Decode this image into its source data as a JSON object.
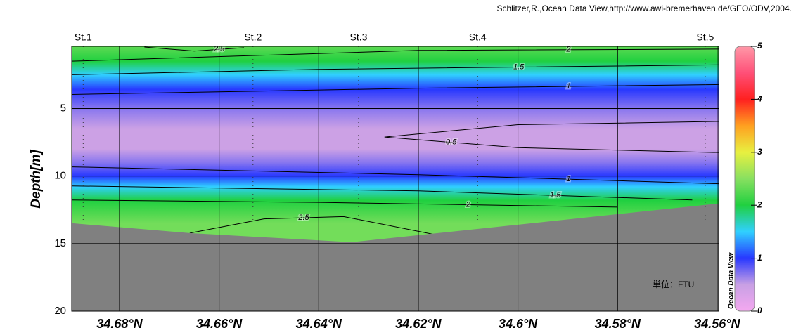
{
  "chart_data": {
    "type": "section",
    "credit": "Schlitzer,R.,Ocean Data View,http://www.awi-bremerhaven.de/GEO/ODV,2004.",
    "ylabel": "Depth[m]",
    "unit_note": "単位：FTU",
    "colorbar_label": "Ocean Data View",
    "xlim": [
      34.6896,
      34.5597
    ],
    "xticks": [
      {
        "value": 34.68,
        "label": "34.68°N"
      },
      {
        "value": 34.66,
        "label": "34.66°N"
      },
      {
        "value": 34.64,
        "label": "34.64°N"
      },
      {
        "value": 34.62,
        "label": "34.62°N"
      },
      {
        "value": 34.6,
        "label": "34.6°N"
      },
      {
        "value": 34.58,
        "label": "34.58°N"
      },
      {
        "value": 34.56,
        "label": "34.56°N"
      }
    ],
    "ylim": [
      0.4,
      20
    ],
    "yticks": [
      5,
      10,
      15,
      20
    ],
    "grid": true,
    "stations": [
      {
        "name": "St.1",
        "lat": 34.6873
      },
      {
        "name": "St.2",
        "lat": 34.6532
      },
      {
        "name": "St.3",
        "lat": 34.632
      },
      {
        "name": "St.4",
        "lat": 34.6081
      },
      {
        "name": "St.5",
        "lat": 34.5624
      }
    ],
    "clim": [
      0,
      5
    ],
    "cticks": [
      0,
      1,
      2,
      3,
      4,
      5
    ],
    "colormap": [
      "#f4a8f0",
      "#c8a0e4",
      "#2838ff",
      "#30d0ff",
      "#20d040",
      "#88e060",
      "#e8f040",
      "#ffa020",
      "#ff2020",
      "#ff5078",
      "#ff98a8"
    ],
    "bottom_color": "#808080",
    "field": {
      "depth": [
        0.4,
        1.5,
        2.5,
        3.6,
        5,
        6.5,
        8,
        9,
        10,
        10.8,
        11.8,
        13.5,
        15
      ],
      "value": [
        2.3,
        2,
        1.5,
        1,
        0.7,
        0.45,
        0.45,
        0.7,
        1,
        1.5,
        2,
        2.4,
        2.4
      ]
    },
    "bottom": {
      "lat": [
        34.6896,
        34.6659,
        34.6334,
        34.5597
      ],
      "depth": [
        13.49,
        14.22,
        14.9,
        12.03
      ]
    },
    "contours": [
      {
        "level": 2.5,
        "lat": [
          34.675,
          34.665,
          34.655
        ],
        "depth": [
          0.45,
          0.75,
          0.5
        ]
      },
      {
        "level": 2,
        "lat": [
          34.6896,
          34.62,
          34.5597
        ],
        "depth": [
          1.5,
          0.7,
          0.6
        ]
      },
      {
        "level": 1.5,
        "lat": [
          34.6896,
          34.64,
          34.5597
        ],
        "depth": [
          2.5,
          2.1,
          1.77
        ]
      },
      {
        "level": 1,
        "lat": [
          34.6896,
          34.62,
          34.5597
        ],
        "depth": [
          3.96,
          3.5,
          3.23
        ]
      },
      {
        "level": 0.5,
        "lat": [
          34.5597,
          34.6,
          34.6268,
          34.6,
          34.5597
        ],
        "depth": [
          5.96,
          6.2,
          7.11,
          7.9,
          8.26
        ]
      },
      {
        "level": 1,
        "lat": [
          34.6896,
          34.62,
          34.5597
        ],
        "depth": [
          9.32,
          9.9,
          10.57
        ]
      },
      {
        "level": 1.5,
        "lat": [
          34.6896,
          34.62,
          34.565
        ],
        "depth": [
          10.73,
          11.1,
          11.77
        ]
      },
      {
        "level": 2,
        "lat": [
          34.6896,
          34.64,
          34.58
        ],
        "depth": [
          11.77,
          11.95,
          12.3
        ]
      },
      {
        "level": 2.5,
        "lat": [
          34.6659,
          34.651,
          34.635,
          34.613
        ],
        "depth": [
          14.22,
          13.17,
          13.0,
          14.6
        ]
      }
    ]
  }
}
